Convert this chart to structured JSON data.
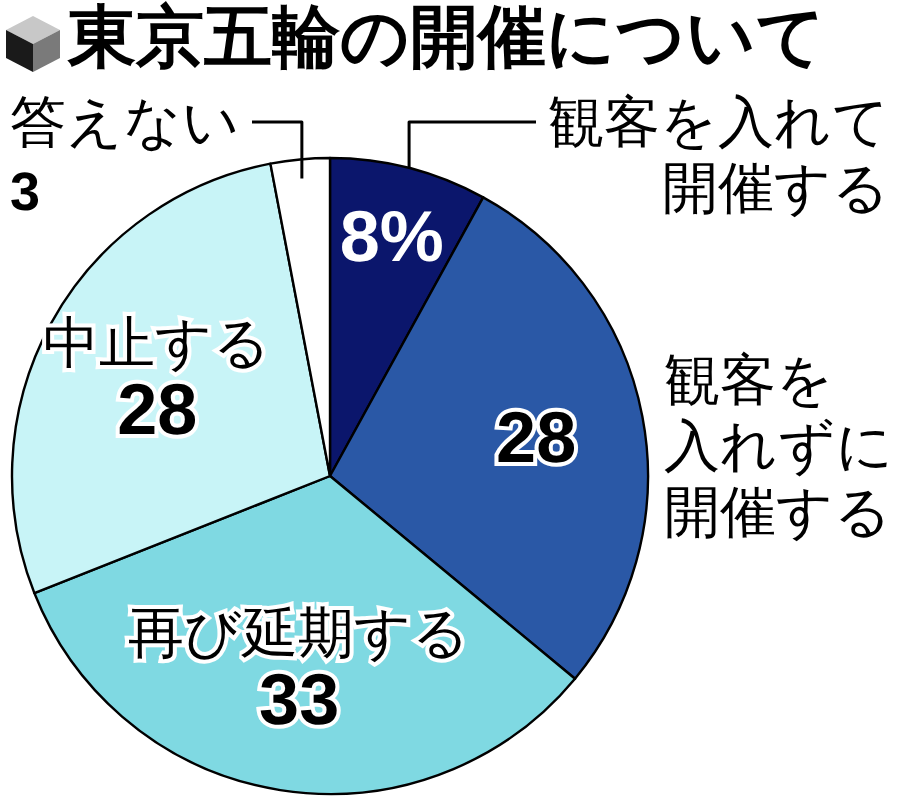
{
  "chart_data": {
    "type": "pie",
    "title": "東京五輪の開催について",
    "categories": [
      "観客を入れて開催する",
      "観客を入れずに開催する",
      "再び延期する",
      "中止する",
      "答えない"
    ],
    "values": [
      8,
      28,
      33,
      28,
      3
    ],
    "colors": [
      "#0b166c",
      "#2a58a6",
      "#7fd9e2",
      "#c8f4f7",
      "#ffffff"
    ],
    "value_labels": [
      "8%",
      "28",
      "33",
      "28",
      "3"
    ]
  }
}
